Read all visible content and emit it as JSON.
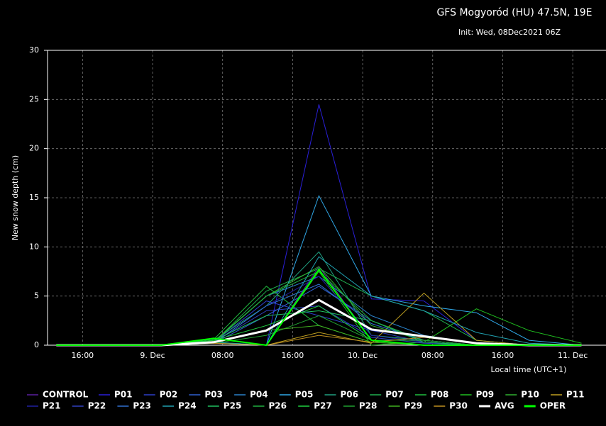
{
  "chart_data": {
    "type": "line",
    "title": "GFS Mogyoród (HU) 47.5N, 19E",
    "subtitle": "Init: Wed, 08Dec2021 06Z",
    "y_label": "New snow depth (cm)",
    "x_label": "Local time (UTC+1)",
    "x": [
      -11,
      -5,
      1,
      7,
      13,
      19,
      25,
      31,
      37,
      43,
      49
    ],
    "xlim": [
      -12,
      51.8
    ],
    "xticks": [
      {
        "value": -8,
        "label": "16:00"
      },
      {
        "value": 0,
        "label": "9. Dec"
      },
      {
        "value": 8,
        "label": "08:00"
      },
      {
        "value": 16,
        "label": "16:00"
      },
      {
        "value": 24,
        "label": "10. Dec"
      },
      {
        "value": 32,
        "label": "08:00"
      },
      {
        "value": 40,
        "label": "16:00"
      },
      {
        "value": 48,
        "label": "11. Dec"
      }
    ],
    "ylim": [
      0,
      30
    ],
    "yticks": [
      0,
      5,
      10,
      15,
      20,
      25,
      30
    ],
    "grid": true,
    "series": [
      {
        "name": "CONTROL",
        "color": "#5a1fa0",
        "values": [
          0,
          0,
          0,
          0.3,
          0,
          8,
          0.5,
          0,
          0,
          0,
          0
        ]
      },
      {
        "name": "P01",
        "color": "#2a1fd8",
        "values": [
          0,
          0,
          0,
          0.2,
          0,
          24.5,
          4.7,
          4.5,
          0.5,
          0,
          0
        ]
      },
      {
        "name": "P02",
        "color": "#2e3fc8",
        "values": [
          0,
          0,
          0,
          0.3,
          4.5,
          3,
          1.5,
          0.3,
          0,
          0,
          0
        ]
      },
      {
        "name": "P03",
        "color": "#3060d0",
        "values": [
          0,
          0,
          0,
          0.2,
          3,
          6,
          2.5,
          0.5,
          0,
          0,
          0
        ]
      },
      {
        "name": "P04",
        "color": "#2a80c8",
        "values": [
          0,
          0,
          0,
          0.3,
          5,
          7,
          3,
          1,
          0.2,
          0,
          0
        ]
      },
      {
        "name": "P05",
        "color": "#30a8e8",
        "values": [
          0,
          0,
          0,
          0.2,
          0,
          15.2,
          5,
          4,
          3.3,
          0.5,
          0
        ]
      },
      {
        "name": "P06",
        "color": "#20a080",
        "values": [
          0,
          0,
          0,
          0.5,
          4,
          9.5,
          1,
          0.5,
          0,
          0,
          0
        ]
      },
      {
        "name": "P07",
        "color": "#20b050",
        "values": [
          0,
          0,
          0,
          0.3,
          5.5,
          7.8,
          5,
          3.5,
          0.5,
          0,
          0
        ]
      },
      {
        "name": "P08",
        "color": "#20c040",
        "values": [
          0,
          0,
          0,
          0.6,
          6,
          2,
          0.3,
          0,
          0,
          0,
          0
        ]
      },
      {
        "name": "P09",
        "color": "#20c020",
        "values": [
          0,
          0,
          0,
          0.3,
          0,
          7.5,
          0,
          0.3,
          3.7,
          1.5,
          0.2
        ]
      },
      {
        "name": "P10",
        "color": "#30b030",
        "values": [
          0,
          0,
          0,
          0.4,
          5,
          8,
          2,
          0.5,
          0,
          0,
          0
        ]
      },
      {
        "name": "P11",
        "color": "#c0a020",
        "values": [
          0,
          0,
          0,
          0.2,
          0,
          1.3,
          0.2,
          5.3,
          0.5,
          0,
          0
        ]
      },
      {
        "name": "P21",
        "color": "#2020a0",
        "values": [
          0,
          0,
          0,
          0.2,
          4,
          7,
          1,
          0.3,
          0,
          0,
          0
        ]
      },
      {
        "name": "P22",
        "color": "#3040c0",
        "values": [
          0,
          0,
          0,
          0.3,
          3.5,
          4,
          0.8,
          0.2,
          0,
          0,
          0
        ]
      },
      {
        "name": "P23",
        "color": "#3070d0",
        "values": [
          0,
          0,
          0,
          0.2,
          4,
          6.2,
          2.2,
          0.5,
          0,
          0,
          0
        ]
      },
      {
        "name": "P24",
        "color": "#20a0b0",
        "values": [
          0,
          0,
          0,
          0.3,
          0,
          9,
          5,
          3.5,
          1.3,
          0.2,
          0
        ]
      },
      {
        "name": "P25",
        "color": "#20c060",
        "values": [
          0,
          0,
          0,
          0.5,
          3,
          3.5,
          2.5,
          0.3,
          0,
          0,
          0
        ]
      },
      {
        "name": "P26",
        "color": "#20b040",
        "values": [
          0,
          0,
          0,
          0.3,
          5,
          7.5,
          2.5,
          0.5,
          0,
          0,
          0
        ]
      },
      {
        "name": "P27",
        "color": "#20d040",
        "values": [
          0,
          0,
          0,
          0.5,
          2,
          4,
          0.5,
          0,
          0,
          0,
          0
        ]
      },
      {
        "name": "P28",
        "color": "#20a030",
        "values": [
          0,
          0,
          0,
          0.2,
          1,
          3,
          0.5,
          0.5,
          0,
          0,
          0
        ]
      },
      {
        "name": "P29",
        "color": "#40b020",
        "values": [
          0,
          0,
          0,
          0.3,
          1.5,
          2,
          0.3,
          0,
          0,
          0,
          0
        ]
      },
      {
        "name": "P30",
        "color": "#c09020",
        "values": [
          0,
          0,
          0,
          0.2,
          0,
          1,
          0.3,
          0.8,
          0.2,
          0,
          0
        ]
      },
      {
        "name": "AVG",
        "color": "#ffffff",
        "values": [
          0,
          0,
          0,
          0.3,
          1.5,
          4.6,
          1.6,
          0.9,
          0.2,
          0,
          0
        ]
      },
      {
        "name": "OPER",
        "color": "#00ff00",
        "values": [
          0,
          0,
          0,
          0.7,
          0,
          7.7,
          0.5,
          0,
          0,
          0,
          0
        ]
      }
    ]
  }
}
